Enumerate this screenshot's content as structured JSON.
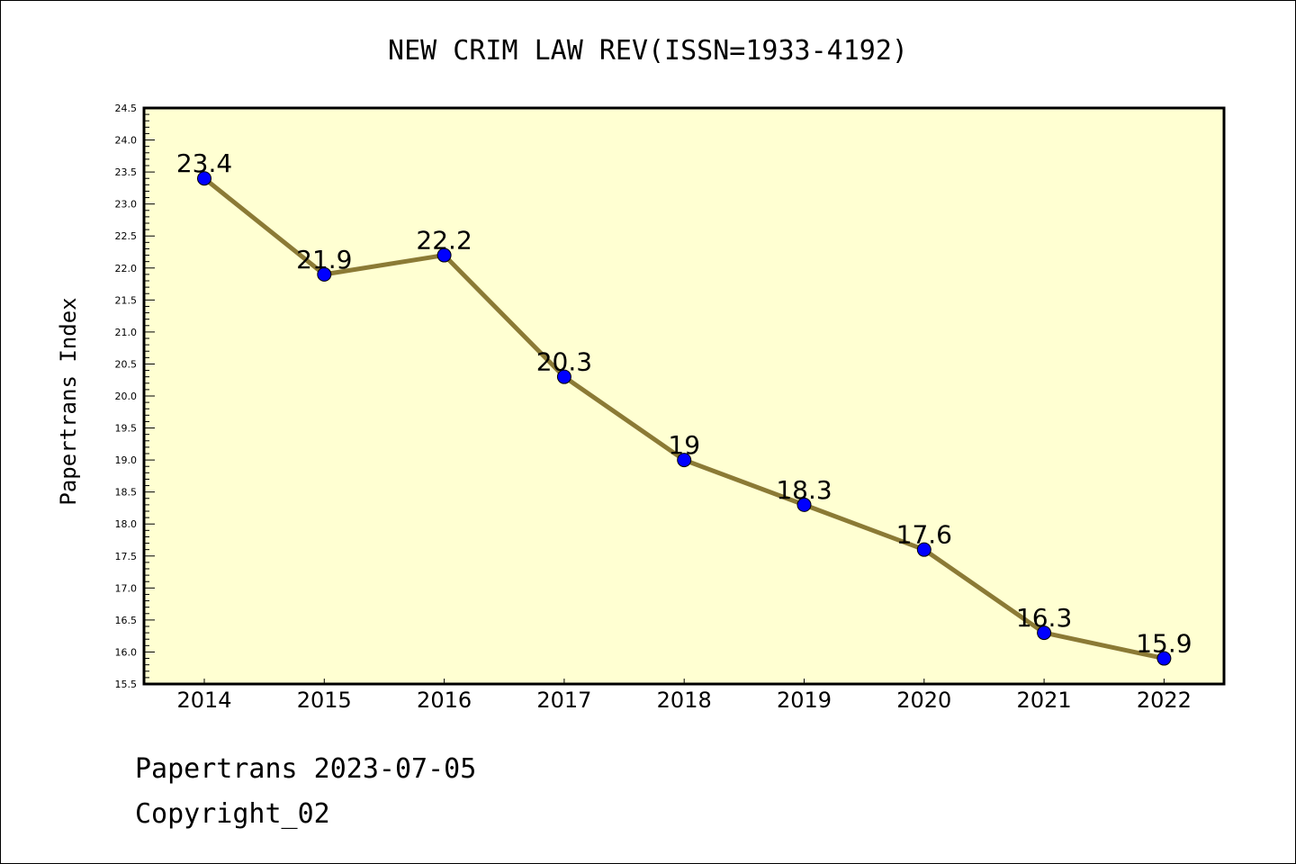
{
  "chart_data": {
    "type": "line",
    "title": "NEW CRIM LAW REV(ISSN=1933-4192)",
    "xlabel": "",
    "ylabel": "Papertrans Index",
    "categories": [
      "2014",
      "2015",
      "2016",
      "2017",
      "2018",
      "2019",
      "2020",
      "2021",
      "2022"
    ],
    "series": [
      {
        "name": "Papertrans Index",
        "values": [
          23.4,
          21.9,
          22.2,
          20.3,
          19.0,
          18.3,
          17.6,
          16.3,
          15.9
        ],
        "data_labels": [
          "23.4",
          "21.9",
          "22.2",
          "20.3",
          "19",
          "18.3",
          "17.6",
          "16.3",
          "15.9"
        ],
        "line_color": "#8b7a35",
        "marker_color": "#0000ff"
      }
    ],
    "ylim": [
      15.5,
      24.5
    ],
    "yticks": [
      "15.5",
      "16.0",
      "16.5",
      "17.0",
      "17.5",
      "18.0",
      "18.5",
      "19.0",
      "19.5",
      "20.0",
      "20.5",
      "21.0",
      "21.5",
      "22.0",
      "22.5",
      "23.0",
      "23.5",
      "24.0",
      "24.5"
    ],
    "plot_background": "#ffffd2",
    "grid": false,
    "legend": "none"
  },
  "footer": {
    "line1": "Papertrans 2023-07-05",
    "line2": "Copyright_02"
  }
}
